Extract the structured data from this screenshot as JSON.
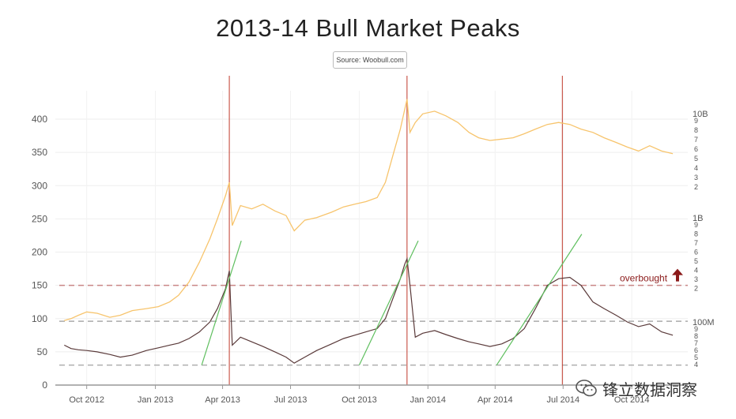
{
  "chart_data": {
    "type": "line",
    "title": "2013-14 Bull Market Peaks",
    "source": "Source: Woobull.com",
    "x_ticks": [
      "Oct 2012",
      "Jan 2013",
      "Apr 2013",
      "Jul 2013",
      "Oct 2013",
      "Jan 2014",
      "Apr 2014",
      "Jul 2014",
      "Oct 2014"
    ],
    "y_left_ticks": [
      0,
      50,
      100,
      150,
      200,
      250,
      300,
      350,
      400
    ],
    "y_left_range": [
      0,
      430
    ],
    "y_right_label_10b": "10B",
    "y_right_label_1b": "1B",
    "y_right_label_100m": "100M",
    "y_right_minor_10b": [
      "9",
      "8",
      "7",
      "6",
      "5",
      "4",
      "3",
      "2"
    ],
    "y_right_minor_1b": [
      "9",
      "8",
      "7",
      "6",
      "5",
      "4",
      "3",
      "2"
    ],
    "y_right_minor_100m": [
      "9",
      "8",
      "7",
      "6",
      "5",
      "4"
    ],
    "y_right_scale": "log",
    "annotation": "overbought",
    "overbought_level": 150,
    "reference_levels": [
      96,
      30
    ],
    "peak_dates": [
      "2013-04-10",
      "2013-12-04",
      "2014-06-30"
    ],
    "series": [
      {
        "color": "#f7c46c",
        "points": [
          [
            "2012-09-01",
            97
          ],
          [
            "2012-09-10",
            100
          ],
          [
            "2012-09-20",
            105
          ],
          [
            "2012-10-01",
            110
          ],
          [
            "2012-10-15",
            108
          ],
          [
            "2012-11-01",
            102
          ],
          [
            "2012-11-15",
            105
          ],
          [
            "2012-12-01",
            112
          ],
          [
            "2012-12-20",
            115
          ],
          [
            "2013-01-05",
            118
          ],
          [
            "2013-01-20",
            125
          ],
          [
            "2013-02-01",
            135
          ],
          [
            "2013-02-15",
            155
          ],
          [
            "2013-03-01",
            185
          ],
          [
            "2013-03-15",
            220
          ],
          [
            "2013-03-25",
            250
          ],
          [
            "2013-04-05",
            285
          ],
          [
            "2013-04-10",
            305
          ],
          [
            "2013-04-14",
            240
          ],
          [
            "2013-04-25",
            270
          ],
          [
            "2013-05-10",
            265
          ],
          [
            "2013-05-25",
            272
          ],
          [
            "2013-06-10",
            262
          ],
          [
            "2013-06-25",
            255
          ],
          [
            "2013-07-06",
            232
          ],
          [
            "2013-07-20",
            248
          ],
          [
            "2013-08-05",
            252
          ],
          [
            "2013-08-25",
            260
          ],
          [
            "2013-09-10",
            268
          ],
          [
            "2013-09-25",
            272
          ],
          [
            "2013-10-10",
            276
          ],
          [
            "2013-10-25",
            282
          ],
          [
            "2013-11-05",
            305
          ],
          [
            "2013-11-15",
            345
          ],
          [
            "2013-11-25",
            385
          ],
          [
            "2013-12-01",
            415
          ],
          [
            "2013-12-04",
            430
          ],
          [
            "2013-12-08",
            380
          ],
          [
            "2013-12-15",
            395
          ],
          [
            "2013-12-25",
            408
          ],
          [
            "2014-01-10",
            412
          ],
          [
            "2014-01-25",
            405
          ],
          [
            "2014-02-10",
            395
          ],
          [
            "2014-02-25",
            380
          ],
          [
            "2014-03-10",
            372
          ],
          [
            "2014-03-25",
            368
          ],
          [
            "2014-04-10",
            370
          ],
          [
            "2014-04-25",
            372
          ],
          [
            "2014-05-10",
            378
          ],
          [
            "2014-05-25",
            385
          ],
          [
            "2014-06-10",
            392
          ],
          [
            "2014-06-25",
            395
          ],
          [
            "2014-07-10",
            392
          ],
          [
            "2014-07-25",
            385
          ],
          [
            "2014-08-10",
            380
          ],
          [
            "2014-08-25",
            372
          ],
          [
            "2014-09-10",
            365
          ],
          [
            "2014-09-25",
            358
          ],
          [
            "2014-10-10",
            352
          ],
          [
            "2014-10-25",
            360
          ],
          [
            "2014-11-10",
            352
          ],
          [
            "2014-11-25",
            348
          ]
        ]
      },
      {
        "color": "#5a3a3a",
        "points": [
          [
            "2012-09-01",
            60
          ],
          [
            "2012-09-10",
            55
          ],
          [
            "2012-09-20",
            53
          ],
          [
            "2012-10-01",
            52
          ],
          [
            "2012-10-15",
            50
          ],
          [
            "2012-11-01",
            46
          ],
          [
            "2012-11-15",
            42
          ],
          [
            "2012-12-01",
            45
          ],
          [
            "2012-12-20",
            52
          ],
          [
            "2013-01-05",
            56
          ],
          [
            "2013-01-20",
            60
          ],
          [
            "2013-02-01",
            63
          ],
          [
            "2013-02-15",
            70
          ],
          [
            "2013-03-01",
            80
          ],
          [
            "2013-03-15",
            95
          ],
          [
            "2013-03-25",
            115
          ],
          [
            "2013-04-05",
            145
          ],
          [
            "2013-04-10",
            172
          ],
          [
            "2013-04-14",
            60
          ],
          [
            "2013-04-25",
            72
          ],
          [
            "2013-05-10",
            65
          ],
          [
            "2013-05-25",
            58
          ],
          [
            "2013-06-10",
            50
          ],
          [
            "2013-06-25",
            42
          ],
          [
            "2013-07-06",
            33
          ],
          [
            "2013-07-20",
            42
          ],
          [
            "2013-08-05",
            52
          ],
          [
            "2013-08-25",
            62
          ],
          [
            "2013-09-10",
            70
          ],
          [
            "2013-09-25",
            75
          ],
          [
            "2013-10-10",
            80
          ],
          [
            "2013-10-25",
            85
          ],
          [
            "2013-11-05",
            100
          ],
          [
            "2013-11-15",
            130
          ],
          [
            "2013-11-25",
            160
          ],
          [
            "2013-12-01",
            182
          ],
          [
            "2013-12-04",
            190
          ],
          [
            "2013-12-08",
            150
          ],
          [
            "2013-12-15",
            72
          ],
          [
            "2013-12-25",
            78
          ],
          [
            "2014-01-10",
            82
          ],
          [
            "2014-01-25",
            76
          ],
          [
            "2014-02-10",
            70
          ],
          [
            "2014-02-25",
            65
          ],
          [
            "2014-03-10",
            62
          ],
          [
            "2014-03-25",
            58
          ],
          [
            "2014-04-10",
            62
          ],
          [
            "2014-04-25",
            70
          ],
          [
            "2014-05-10",
            85
          ],
          [
            "2014-05-25",
            115
          ],
          [
            "2014-06-10",
            150
          ],
          [
            "2014-06-25",
            160
          ],
          [
            "2014-07-10",
            162
          ],
          [
            "2014-07-25",
            150
          ],
          [
            "2014-08-10",
            125
          ],
          [
            "2014-08-25",
            115
          ],
          [
            "2014-09-10",
            105
          ],
          [
            "2014-09-25",
            95
          ],
          [
            "2014-10-10",
            88
          ],
          [
            "2014-10-25",
            92
          ],
          [
            "2014-11-10",
            80
          ],
          [
            "2014-11-25",
            75
          ]
        ]
      },
      {
        "color": "#5fbf5f",
        "segments": [
          [
            [
              "2013-03-04",
              30
            ],
            [
              "2013-04-26",
              217
            ]
          ],
          [
            [
              "2013-10-01",
              30
            ],
            [
              "2013-12-19",
              217
            ]
          ],
          [
            [
              "2014-04-03",
              30
            ],
            [
              "2014-07-26",
              227
            ]
          ]
        ]
      }
    ]
  }
}
